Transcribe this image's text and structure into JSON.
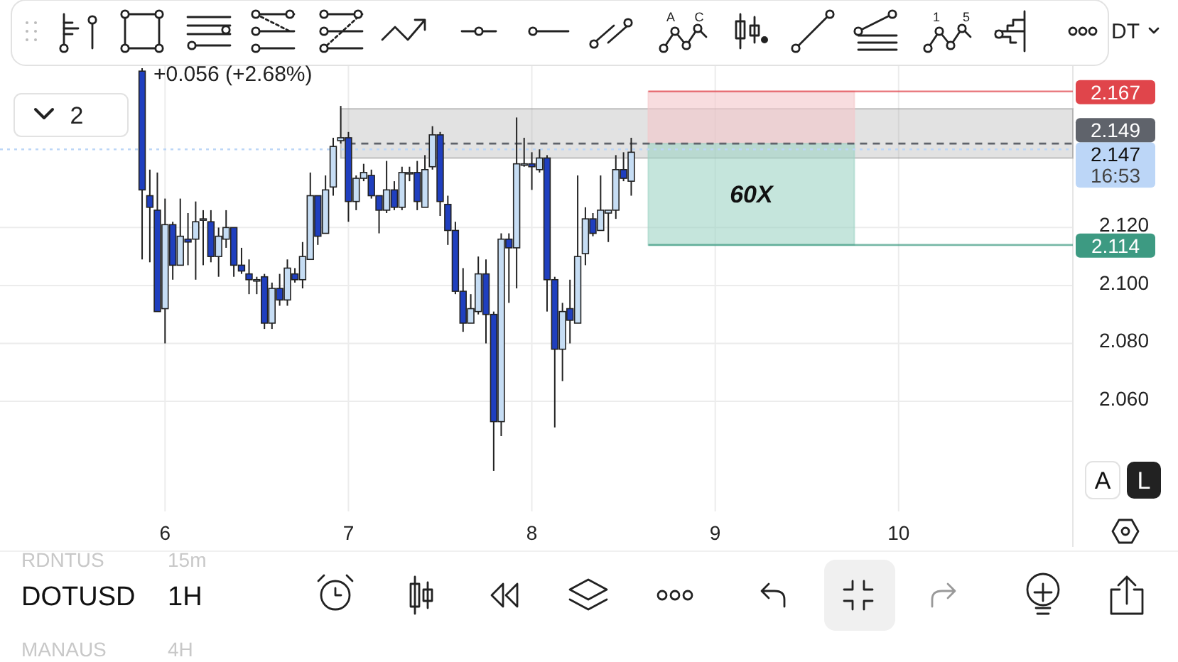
{
  "chart_data": {
    "type": "candlestick",
    "x": [
      5.875,
      5.917,
      5.958,
      6.0,
      6.042,
      6.083,
      6.125,
      6.167,
      6.208,
      6.25,
      6.292,
      6.333,
      6.375,
      6.417,
      6.458,
      6.5,
      6.542,
      6.583,
      6.625,
      6.667,
      6.708,
      6.75,
      6.792,
      6.833,
      6.875,
      6.917,
      6.958,
      7.0,
      7.042,
      7.083,
      7.125,
      7.167,
      7.208,
      7.25,
      7.292,
      7.333,
      7.375,
      7.417,
      7.458,
      7.5,
      7.542,
      7.583,
      7.625,
      7.667,
      7.708,
      7.75,
      7.792,
      7.833,
      7.875,
      7.917,
      7.958,
      8.0,
      8.042,
      8.083,
      8.125,
      8.167,
      8.208,
      8.25,
      8.292,
      8.333,
      8.375,
      8.417,
      8.458,
      8.5,
      8.542
    ],
    "ohlc": [
      [
        2.174,
        2.175,
        2.109,
        2.133
      ],
      [
        2.131,
        2.14,
        2.108,
        2.127
      ],
      [
        2.126,
        2.139,
        2.091,
        2.091
      ],
      [
        2.092,
        2.13,
        2.08,
        2.121
      ],
      [
        2.121,
        2.122,
        2.102,
        2.107
      ],
      [
        2.107,
        2.13,
        2.107,
        2.117
      ],
      [
        2.116,
        2.125,
        2.107,
        2.115
      ],
      [
        2.116,
        2.129,
        2.102,
        2.122
      ],
      [
        2.123,
        2.126,
        2.107,
        2.123
      ],
      [
        2.122,
        2.126,
        2.108,
        2.11
      ],
      [
        2.11,
        2.12,
        2.103,
        2.117
      ],
      [
        2.116,
        2.126,
        2.113,
        2.12
      ],
      [
        2.12,
        2.12,
        2.103,
        2.107
      ],
      [
        2.107,
        2.113,
        2.104,
        2.105
      ],
      [
        2.104,
        2.109,
        2.097,
        2.102
      ],
      [
        2.102,
        2.103,
        2.097,
        2.102
      ],
      [
        2.103,
        2.104,
        2.085,
        2.087
      ],
      [
        2.087,
        2.101,
        2.085,
        2.099
      ],
      [
        2.099,
        2.104,
        2.093,
        2.095
      ],
      [
        2.095,
        2.109,
        2.093,
        2.106
      ],
      [
        2.104,
        2.106,
        2.101,
        2.102
      ],
      [
        2.102,
        2.115,
        2.099,
        2.11
      ],
      [
        2.109,
        2.139,
        2.109,
        2.131
      ],
      [
        2.131,
        2.131,
        2.114,
        2.117
      ],
      [
        2.118,
        2.138,
        2.118,
        2.133
      ],
      [
        2.134,
        2.151,
        2.131,
        2.148
      ],
      [
        2.15,
        2.162,
        2.149,
        2.151
      ],
      [
        2.151,
        2.153,
        2.122,
        2.129
      ],
      [
        2.129,
        2.138,
        2.126,
        2.137
      ],
      [
        2.137,
        2.142,
        2.136,
        2.139
      ],
      [
        2.138,
        2.14,
        2.13,
        2.131
      ],
      [
        2.131,
        2.131,
        2.118,
        2.126
      ],
      [
        2.126,
        2.143,
        2.125,
        2.133
      ],
      [
        2.133,
        2.136,
        2.126,
        2.127
      ],
      [
        2.127,
        2.141,
        2.126,
        2.139
      ],
      [
        2.139,
        2.141,
        2.136,
        2.139
      ],
      [
        2.139,
        2.143,
        2.126,
        2.129
      ],
      [
        2.127,
        2.145,
        2.127,
        2.14
      ],
      [
        2.141,
        2.155,
        2.14,
        2.152
      ],
      [
        2.152,
        2.153,
        2.124,
        2.129
      ],
      [
        2.128,
        2.131,
        2.114,
        2.119
      ],
      [
        2.119,
        2.122,
        2.097,
        2.098
      ],
      [
        2.098,
        2.106,
        2.084,
        2.087
      ],
      [
        2.087,
        2.097,
        2.087,
        2.092
      ],
      [
        2.091,
        2.11,
        2.09,
        2.104
      ],
      [
        2.104,
        2.109,
        2.08,
        2.09
      ],
      [
        2.09,
        2.091,
        2.036,
        2.053
      ],
      [
        2.053,
        2.118,
        2.048,
        2.116
      ],
      [
        2.116,
        2.118,
        2.094,
        2.113
      ],
      [
        2.113,
        2.158,
        2.099,
        2.142
      ],
      [
        2.142,
        2.151,
        2.141,
        2.142
      ],
      [
        2.142,
        2.146,
        2.133,
        2.141
      ],
      [
        2.14,
        2.147,
        2.139,
        2.144
      ],
      [
        2.144,
        2.145,
        2.091,
        2.102
      ],
      [
        2.102,
        2.103,
        2.051,
        2.078
      ],
      [
        2.078,
        2.094,
        2.067,
        2.091
      ],
      [
        2.092,
        2.102,
        2.08,
        2.088
      ],
      [
        2.087,
        2.138,
        2.087,
        2.11
      ],
      [
        2.111,
        2.127,
        2.107,
        2.123
      ],
      [
        2.123,
        2.125,
        2.117,
        2.118
      ],
      [
        2.119,
        2.138,
        2.119,
        2.126
      ],
      [
        2.125,
        2.126,
        2.115,
        2.126
      ],
      [
        2.126,
        2.145,
        2.123,
        2.14
      ],
      [
        2.14,
        2.146,
        2.136,
        2.137
      ],
      [
        2.136,
        2.151,
        2.131,
        2.146
      ]
    ],
    "colors": [
      "#1f3fbf",
      "#1f3fbf",
      "#1f3fbf",
      "#c6ddf4",
      "#1f3fbf",
      "#c6ddf4",
      "#1f3fbf",
      "#c6ddf4",
      "#c6ddf4",
      "#1f3fbf",
      "#c6ddf4",
      "#c6ddf4",
      "#1f3fbf",
      "#1f3fbf",
      "#1f3fbf",
      "#c6ddf4",
      "#1f3fbf",
      "#c6ddf4",
      "#1f3fbf",
      "#c6ddf4",
      "#1f3fbf",
      "#c6ddf4",
      "#c6ddf4",
      "#1f3fbf",
      "#c6ddf4",
      "#c6ddf4",
      "#c6ddf4",
      "#1f3fbf",
      "#c6ddf4",
      "#c6ddf4",
      "#1f3fbf",
      "#1f3fbf",
      "#c6ddf4",
      "#1f3fbf",
      "#c6ddf4",
      "#c6ddf4",
      "#1f3fbf",
      "#c6ddf4",
      "#c6ddf4",
      "#1f3fbf",
      "#1f3fbf",
      "#1f3fbf",
      "#1f3fbf",
      "#c6ddf4",
      "#c6ddf4",
      "#1f3fbf",
      "#1f3fbf",
      "#c6ddf4",
      "#1f3fbf",
      "#c6ddf4",
      "#c6ddf4",
      "#1f3fbf",
      "#c6ddf4",
      "#1f3fbf",
      "#1f3fbf",
      "#c6ddf4",
      "#1f3fbf",
      "#c6ddf4",
      "#c6ddf4",
      "#1f3fbf",
      "#c6ddf4",
      "#c6ddf4",
      "#c6ddf4",
      "#1f3fbf",
      "#c6ddf4"
    ],
    "xlim": [
      5.1,
      10.95
    ],
    "xticks": [
      6,
      7,
      8,
      9,
      10
    ],
    "ylim": [
      2.022,
      2.176
    ],
    "yticks": [
      {
        "value": 2.06,
        "label": "2.060"
      },
      {
        "value": 2.08,
        "label": "2.080"
      },
      {
        "value": 2.1,
        "label": "2.100"
      },
      {
        "value": 2.12,
        "label": "2.120"
      }
    ],
    "grid": true,
    "ref_lines": [
      {
        "axis": "y",
        "value": 2.167,
        "label": "2.167",
        "color": "#e0454b"
      },
      {
        "axis": "y",
        "value": 2.149,
        "label": "2.149",
        "color": "#5f636b",
        "line_style": "dashed"
      },
      {
        "axis": "y",
        "value": 2.147,
        "label": "2.147\n16:53",
        "color": "#bcd6f7",
        "line_style": "dotted"
      },
      {
        "axis": "y",
        "value": 2.114,
        "label": "2.114",
        "color": "#3d9a82"
      }
    ],
    "bands": [
      {
        "axis": "y",
        "from": 2.144,
        "to": 2.161,
        "color": "#9e9e9e"
      },
      {
        "axis": "y",
        "from": 2.149,
        "to": 2.167,
        "color": "#f4c7c9"
      },
      {
        "axis": "y",
        "from": 2.114,
        "to": 2.149,
        "color": "#9fd3c5",
        "label": "60X"
      }
    ],
    "annotations": [
      "+0.056 (+2.68%)",
      "2",
      "DT",
      "DOTUSD",
      "1H",
      "RDNTUS",
      "15m",
      "MANAUS",
      "4H",
      "A",
      "L",
      "A",
      "C",
      "1",
      "5"
    ]
  }
}
